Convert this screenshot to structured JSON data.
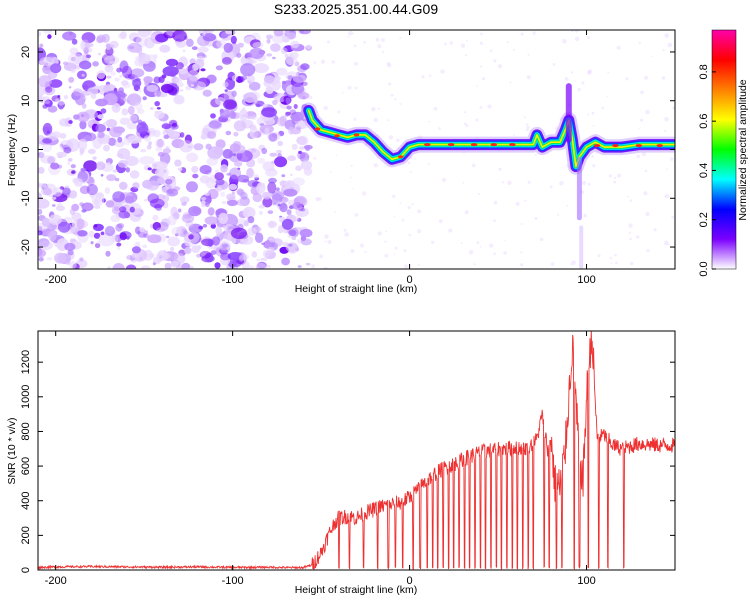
{
  "title": "S233.2025.351.00.44.G09",
  "chart_data": [
    {
      "type": "heatmap",
      "xlabel": "Height of straight line (km)",
      "ylabel": "Frequency (Hz)",
      "xlim": [
        -210,
        150
      ],
      "ylim": [
        -24.5,
        24.5
      ],
      "xticks": [
        -200,
        -100,
        0,
        100
      ],
      "yticks": [
        -20,
        -10,
        0,
        10,
        20
      ],
      "colorbar": {
        "label": "Normalized spectral amplitude",
        "range": [
          0,
          0.97
        ],
        "ticks": [
          "0.0",
          "0.2",
          "0.4",
          "0.6",
          "0.8"
        ],
        "colors": [
          "#ffffff",
          "#7b00ff",
          "#0000ff",
          "#00ffff",
          "#00ff00",
          "#ffff00",
          "#ff8000",
          "#ff0000",
          "#ff00aa"
        ]
      },
      "noise_region_x": [
        -210,
        -57
      ],
      "ridge": {
        "x": [
          -57,
          -55,
          -50,
          -45,
          -40,
          -35,
          -30,
          -25,
          -20,
          -15,
          -10,
          -5,
          0,
          5,
          10,
          20,
          30,
          40,
          50,
          60,
          70,
          72,
          75,
          80,
          85,
          88,
          90,
          92,
          94,
          96,
          100,
          105,
          110,
          120,
          130,
          140,
          150
        ],
        "frequency": [
          8,
          6,
          4,
          3.5,
          3,
          2.5,
          3,
          3,
          1.5,
          -0.5,
          -2,
          -1.5,
          0.5,
          1,
          1,
          1,
          1,
          1,
          1,
          1,
          1,
          3,
          0.5,
          1.5,
          1.5,
          4,
          6,
          2,
          -3.5,
          -1.5,
          0.5,
          1.5,
          0.5,
          0.5,
          1,
          1,
          1
        ]
      }
    },
    {
      "type": "line",
      "xlabel": "Height of straight line (km)",
      "ylabel": "SNR (10 * v/v)",
      "xlim": [
        -210,
        150
      ],
      "ylim": [
        0,
        1380
      ],
      "xticks": [
        -200,
        -100,
        0,
        100
      ],
      "yticks": [
        0,
        200,
        400,
        600,
        800,
        1000,
        1200
      ],
      "series": [
        {
          "color": "#ee3030",
          "x": [
            -210,
            -200,
            -180,
            -160,
            -140,
            -120,
            -100,
            -80,
            -70,
            -60,
            -55,
            -50,
            -45,
            -42,
            -40,
            -35,
            -30,
            -25,
            -20,
            -15,
            -10,
            -5,
            0,
            5,
            10,
            15,
            20,
            25,
            30,
            35,
            40,
            45,
            50,
            55,
            60,
            65,
            70,
            72,
            75,
            78,
            80,
            82,
            85,
            88,
            90,
            92,
            95,
            98,
            100,
            103,
            106,
            110,
            115,
            120,
            130,
            140,
            150
          ],
          "y": [
            15,
            18,
            20,
            18,
            16,
            18,
            15,
            16,
            14,
            14,
            30,
            100,
            220,
            280,
            300,
            310,
            300,
            330,
            350,
            370,
            380,
            390,
            420,
            470,
            520,
            560,
            590,
            610,
            640,
            660,
            680,
            690,
            700,
            700,
            710,
            700,
            730,
            760,
            900,
            700,
            760,
            500,
            480,
            700,
            1000,
            1300,
            800,
            500,
            1000,
            1370,
            760,
            780,
            720,
            700,
            730,
            720,
            720
          ]
        }
      ],
      "dropouts_x": [
        -40,
        -34,
        -26,
        -18,
        -12,
        -8,
        -4,
        2,
        6,
        10,
        13,
        16,
        19,
        22,
        25,
        28,
        31,
        34,
        37,
        40,
        43,
        46,
        49,
        52,
        55,
        58,
        61,
        64,
        67,
        70,
        76,
        79,
        83,
        86,
        93,
        96,
        101,
        107,
        112,
        121
      ]
    }
  ]
}
